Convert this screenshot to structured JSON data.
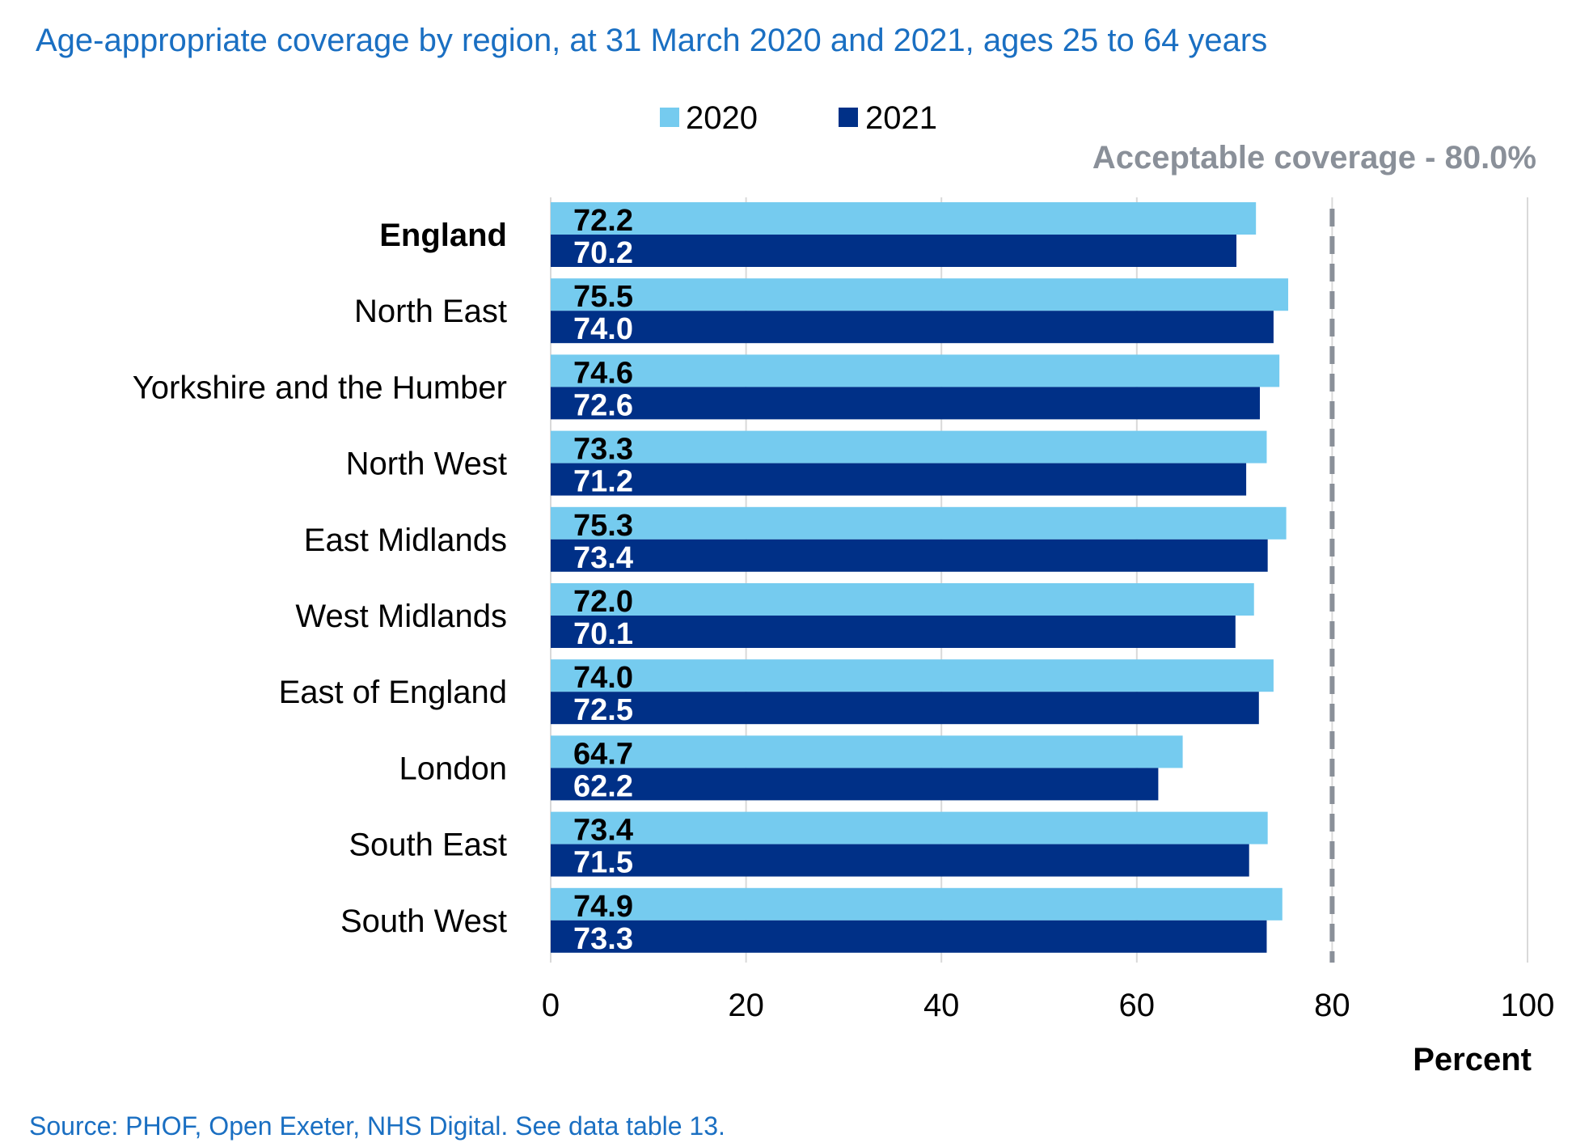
{
  "chart_data": {
    "type": "bar",
    "orientation": "horizontal",
    "title": "Age-appropriate coverage by region, at 31 March 2020 and 2021, ages 25 to 64 years",
    "categories": [
      "England",
      "North East",
      "Yorkshire and the Humber",
      "North West",
      "East Midlands",
      "West Midlands",
      "East of England",
      "London",
      "South East",
      "South West"
    ],
    "series": [
      {
        "name": "2020",
        "color": "#75cbef",
        "values": [
          72.2,
          75.5,
          74.6,
          73.3,
          75.3,
          72.0,
          74.0,
          64.7,
          73.4,
          74.9
        ],
        "labels": [
          "72.2",
          "75.5",
          "74.6",
          "73.3",
          "75.3",
          "72.0",
          "74.0",
          "64.7",
          "73.4",
          "74.9"
        ]
      },
      {
        "name": "2021",
        "color": "#003087",
        "values": [
          70.2,
          74.0,
          72.6,
          71.2,
          73.4,
          70.1,
          72.5,
          62.2,
          71.5,
          73.3
        ],
        "labels": [
          "70.2",
          "74.0",
          "72.6",
          "71.2",
          "73.4",
          "70.1",
          "72.5",
          "62.2",
          "71.5",
          "73.3"
        ]
      }
    ],
    "xlim": [
      0,
      100
    ],
    "xticks": [
      0,
      20,
      40,
      60,
      80,
      100
    ],
    "xlabel": "Percent",
    "grid": true,
    "legend_position": "top",
    "reference_line": {
      "value": 80,
      "label": "Acceptable coverage - 80.0%",
      "color": "#8a9099"
    },
    "bold_categories": [
      "England"
    ]
  },
  "source_note": "Source: PHOF, Open Exeter, NHS Digital. See data table 13."
}
